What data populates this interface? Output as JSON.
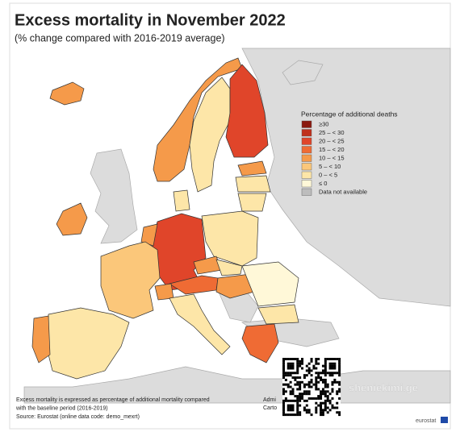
{
  "header": {
    "title": "Excess mortality in November 2022",
    "subtitle": "(% change compared with 2016-2019 average)"
  },
  "legend": {
    "title": "Percentage of additional deaths",
    "items": [
      {
        "label": "≥30",
        "color": "#8b1a10"
      },
      {
        "label": "25 – < 30",
        "color": "#c0301c"
      },
      {
        "label": "20 – < 25",
        "color": "#e0452a"
      },
      {
        "label": "15 – < 20",
        "color": "#ef6b34"
      },
      {
        "label": "10 – < 15",
        "color": "#f59a4a"
      },
      {
        "label": "5 – < 10",
        "color": "#fbc77a"
      },
      {
        "label": "0 – < 5",
        "color": "#fde6a8"
      },
      {
        "label": "≤ 0",
        "color": "#fff8d8"
      },
      {
        "label": "Data not available",
        "color": "#bdbdbd"
      }
    ]
  },
  "footnote": {
    "lines": [
      "Excess mortality is expressed as percentage of additional mortality compared",
      "with the baseline period (2016-2019)",
      "Source: Eurostat (online data code: demo_mexrt)"
    ]
  },
  "admin": [
    "Admi",
    "Carto"
  ],
  "watermark": "sheniekimi.ge",
  "logo": "eurostat"
}
